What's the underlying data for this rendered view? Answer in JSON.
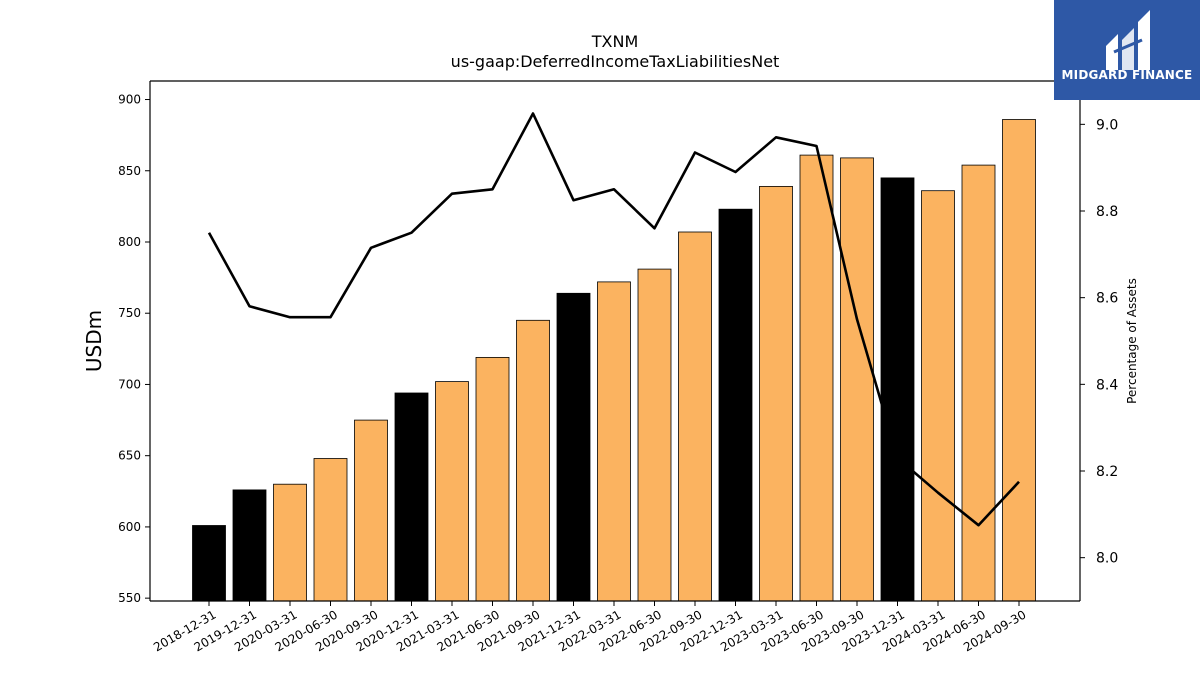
{
  "chart_data": {
    "type": "bar",
    "title": "TXNM",
    "subtitle": "us-gaap:DeferredIncomeTaxLiabilitiesNet",
    "ylabel": "USDm",
    "y2label": "Percentage of Assets",
    "ylim": [
      548,
      913
    ],
    "y2lim": [
      7.9,
      9.1
    ],
    "yticks": [
      550,
      600,
      650,
      700,
      750,
      800,
      850,
      900
    ],
    "y2ticks": [
      8.0,
      8.2,
      8.4,
      8.6,
      8.8,
      9.0
    ],
    "y2tick_labels": [
      "8.0",
      "8.2",
      "8.4",
      "8.6",
      "8.8",
      "9.0"
    ],
    "categories": [
      "2018-12-31",
      "2019-12-31",
      "2020-03-31",
      "2020-06-30",
      "2020-09-30",
      "2020-12-31",
      "2021-03-31",
      "2021-06-30",
      "2021-09-30",
      "2021-12-31",
      "2022-03-31",
      "2022-06-30",
      "2022-09-30",
      "2022-12-31",
      "2023-03-31",
      "2023-06-30",
      "2023-09-30",
      "2023-12-31",
      "2024-03-31",
      "2024-06-30",
      "2024-09-30"
    ],
    "series": [
      {
        "values": [
          601,
          626,
          630,
          648,
          675,
          694,
          702,
          719,
          745,
          764,
          772,
          781,
          807,
          823,
          839,
          861,
          859,
          845,
          836,
          854,
          886
        ],
        "colors": [
          "#000000",
          "#000000",
          "#fbb360",
          "#fbb360",
          "#fbb360",
          "#000000",
          "#fbb360",
          "#fbb360",
          "#fbb360",
          "#000000",
          "#fbb360",
          "#fbb360",
          "#fbb360",
          "#000000",
          "#fbb360",
          "#fbb360",
          "#fbb360",
          "#000000",
          "#fbb360",
          "#fbb360",
          "#fbb360"
        ]
      },
      {
        "axis": "right",
        "type": "line",
        "color": "#000000",
        "values": [
          8.75,
          8.58,
          8.555,
          8.555,
          8.715,
          8.75,
          8.84,
          8.85,
          9.025,
          8.825,
          8.85,
          8.76,
          8.935,
          8.89,
          8.97,
          8.95,
          8.55,
          8.23,
          8.15,
          8.075,
          8.175
        ]
      }
    ]
  },
  "logo": {
    "text": "MIDGARD FINANCE",
    "color": "#2e58a6"
  }
}
